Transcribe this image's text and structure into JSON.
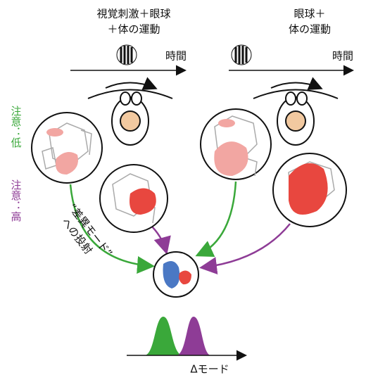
{
  "panels": [
    {
      "title_lines": [
        "視覚刺激＋眼球",
        "＋体の運動"
      ],
      "time_label": "時間"
    },
    {
      "title_lines": [
        "眼球＋",
        "体の運動"
      ],
      "time_label": "時間"
    }
  ],
  "attention": {
    "low": "注意：低",
    "high": "注意：高"
  },
  "projection": {
    "lines": [
      "“差異モード”",
      "への投射"
    ]
  },
  "axis_label": "Δモード"
}
